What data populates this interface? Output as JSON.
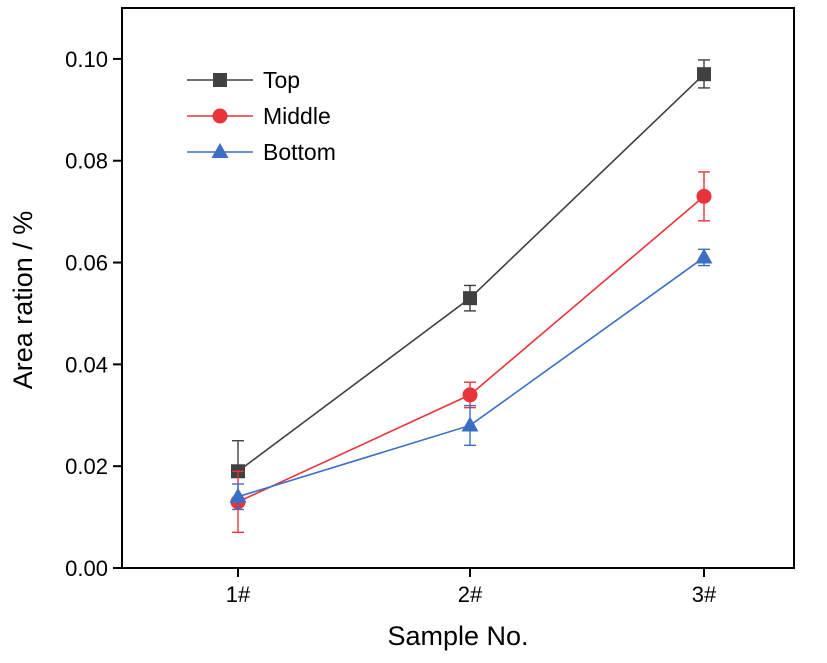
{
  "chart_data": {
    "type": "line",
    "title": "",
    "xlabel": "Sample No.",
    "ylabel": "Area ration / %",
    "categories": [
      "1#",
      "2#",
      "3#"
    ],
    "ylim": [
      0.0,
      0.11
    ],
    "yticks": [
      0.0,
      0.02,
      0.04,
      0.06,
      0.08,
      0.1
    ],
    "ytick_labels": [
      "0.00",
      "0.02",
      "0.04",
      "0.06",
      "0.08",
      "0.10"
    ],
    "grid": false,
    "legend_position": "top-left",
    "series": [
      {
        "name": "Top",
        "marker": "square",
        "color": "#404040",
        "values": [
          0.019,
          0.053,
          0.097
        ],
        "err_low": [
          0.019,
          0.0505,
          0.0943
        ],
        "err_high": [
          0.025,
          0.0555,
          0.0998
        ]
      },
      {
        "name": "Middle",
        "marker": "circle",
        "color": "#e8343a",
        "values": [
          0.013,
          0.034,
          0.073
        ],
        "err_low": [
          0.007,
          0.0315,
          0.0682
        ],
        "err_high": [
          0.019,
          0.0365,
          0.0778
        ]
      },
      {
        "name": "Bottom",
        "marker": "triangle",
        "color": "#3a6fc4",
        "values": [
          0.014,
          0.028,
          0.061
        ],
        "err_low": [
          0.0115,
          0.0241,
          0.0594
        ],
        "err_high": [
          0.0165,
          0.0319,
          0.0626
        ]
      }
    ]
  }
}
